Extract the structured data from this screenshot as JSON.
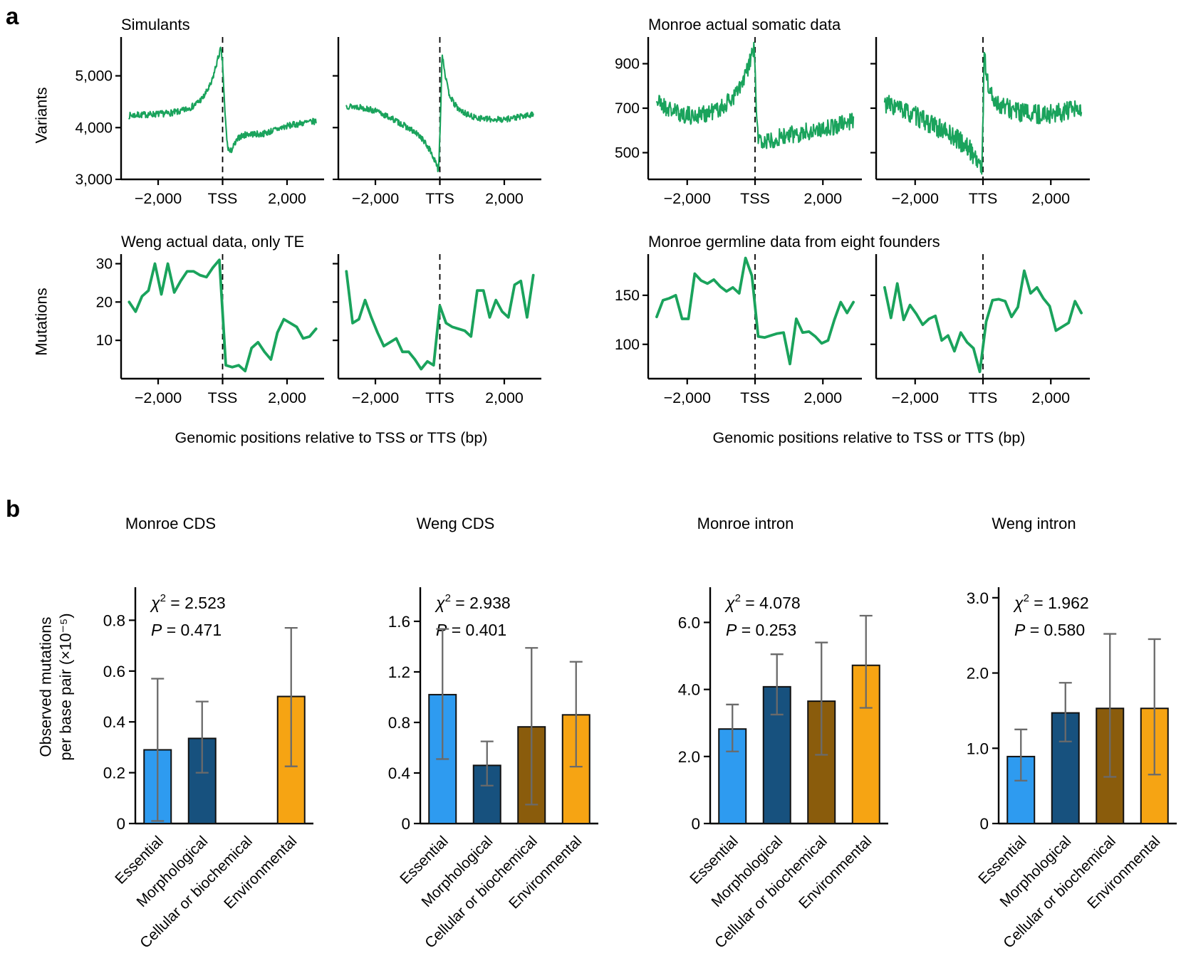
{
  "chart_data": {
    "panel_a": {
      "label": "a",
      "type": "line",
      "ylabel_row1": "Variants",
      "ylabel_row2": "Mutations",
      "xlabel": "Genomic positions relative to TSS or TTS (bp)",
      "line_color": "#1aa35c",
      "axis_color": "#000000",
      "x_lim": [
        -3150,
        3150
      ],
      "x_data_range": [
        -2900,
        2900
      ],
      "x_tick_values": [
        -2000,
        0,
        2000
      ],
      "x_tick_labels": {
        "neg": "−2,000",
        "pos": "2,000"
      },
      "groups": [
        {
          "title": "Simulants",
          "y_ticks": [
            {
              "v": 3000,
              "label": "3,000"
            },
            {
              "v": 4000,
              "label": "4,000"
            },
            {
              "v": 5000,
              "label": "5,000"
            }
          ],
          "y_lim": [
            3000,
            5750
          ],
          "plots": [
            {
              "anchor": "TSS",
              "kind": "noisy",
              "seed": 7,
              "n": 420,
              "noise": 62,
              "trend": [
                [
                  -3000,
                  4230
                ],
                [
                  -2400,
                  4250
                ],
                [
                  -1800,
                  4270
                ],
                [
                  -1300,
                  4310
                ],
                [
                  -900,
                  4420
                ],
                [
                  -600,
                  4580
                ],
                [
                  -350,
                  4850
                ],
                [
                  -180,
                  5250
                ],
                [
                  -60,
                  5520
                ],
                [
                  0,
                  5250
                ],
                [
                  70,
                  4300
                ],
                [
                  150,
                  3640
                ],
                [
                  230,
                  3520
                ],
                [
                  360,
                  3660
                ],
                [
                  520,
                  3820
                ],
                [
                  800,
                  3880
                ],
                [
                  1200,
                  3870
                ],
                [
                  1600,
                  3950
                ],
                [
                  2000,
                  4030
                ],
                [
                  2500,
                  4090
                ],
                [
                  3000,
                  4130
                ]
              ]
            },
            {
              "anchor": "TTS",
              "kind": "noisy",
              "seed": 13,
              "n": 420,
              "noise": 58,
              "trend": [
                [
                  -3000,
                  4420
                ],
                [
                  -2500,
                  4400
                ],
                [
                  -2000,
                  4320
                ],
                [
                  -1500,
                  4180
                ],
                [
                  -1000,
                  4000
                ],
                [
                  -600,
                  3830
                ],
                [
                  -300,
                  3560
                ],
                [
                  -120,
                  3300
                ],
                [
                  -40,
                  3170
                ],
                [
                  20,
                  4200
                ],
                [
                  70,
                  5450
                ],
                [
                  160,
                  5050
                ],
                [
                  260,
                  4700
                ],
                [
                  420,
                  4480
                ],
                [
                  620,
                  4330
                ],
                [
                  1000,
                  4210
                ],
                [
                  1500,
                  4160
                ],
                [
                  2000,
                  4160
                ],
                [
                  2500,
                  4210
                ],
                [
                  3000,
                  4260
                ]
              ]
            }
          ]
        },
        {
          "title": "Monroe actual somatic data",
          "y_ticks": [
            {
              "v": 500,
              "label": "500"
            },
            {
              "v": 700,
              "label": "700"
            },
            {
              "v": 900,
              "label": "900"
            }
          ],
          "y_lim": [
            380,
            1020
          ],
          "plots": [
            {
              "anchor": "TSS",
              "kind": "noisy",
              "seed": 21,
              "n": 400,
              "noise": 40,
              "trend": [
                [
                  -3000,
                  745
                ],
                [
                  -2600,
                  700
                ],
                [
                  -2200,
                  675
                ],
                [
                  -1800,
                  665
                ],
                [
                  -1400,
                  680
                ],
                [
                  -1000,
                  700
                ],
                [
                  -700,
                  740
                ],
                [
                  -400,
                  800
                ],
                [
                  -200,
                  880
                ],
                [
                  -80,
                  950
                ],
                [
                  -20,
                  975
                ],
                [
                  30,
                  700
                ],
                [
                  100,
                  560
                ],
                [
                  250,
                  545
                ],
                [
                  500,
                  560
                ],
                [
                  900,
                  575
                ],
                [
                  1400,
                  590
                ],
                [
                  1900,
                  605
                ],
                [
                  2400,
                  620
                ],
                [
                  3000,
                  650
                ]
              ]
            },
            {
              "anchor": "TTS",
              "kind": "noisy",
              "seed": 33,
              "n": 400,
              "noise": 44,
              "trend": [
                [
                  -3000,
                  730
                ],
                [
                  -2500,
                  700
                ],
                [
                  -2000,
                  665
                ],
                [
                  -1500,
                  625
                ],
                [
                  -1000,
                  585
                ],
                [
                  -700,
                  555
                ],
                [
                  -400,
                  515
                ],
                [
                  -200,
                  475
                ],
                [
                  -80,
                  440
                ],
                [
                  -30,
                  430
                ],
                [
                  10,
                  700
                ],
                [
                  40,
                  990
                ],
                [
                  90,
                  860
                ],
                [
                  180,
                  780
                ],
                [
                  300,
                  740
                ],
                [
                  500,
                  715
                ],
                [
                  900,
                  690
                ],
                [
                  1400,
                  672
                ],
                [
                  2000,
                  675
                ],
                [
                  2500,
                  685
                ],
                [
                  3000,
                  695
                ]
              ]
            }
          ]
        },
        {
          "title": "Weng actual data, only TE",
          "y_ticks": [
            {
              "v": 10,
              "label": "10"
            },
            {
              "v": 20,
              "label": "20"
            },
            {
              "v": 30,
              "label": "30"
            }
          ],
          "y_lim": [
            0,
            32.5
          ],
          "plots": [
            {
              "anchor": "TSS",
              "kind": "series",
              "values": [
                20,
                17.5,
                21.5,
                23,
                30,
                22,
                30,
                22.5,
                25.5,
                28,
                28,
                27,
                26.5,
                29,
                31,
                3.5,
                3,
                3.5,
                2,
                8,
                9.5,
                7,
                5,
                12,
                15.5,
                14.5,
                13.5,
                10.5,
                11,
                13
              ]
            },
            {
              "anchor": "TTS",
              "kind": "series",
              "values": [
                28,
                14.5,
                15.5,
                20.5,
                16,
                12,
                8.5,
                9.5,
                10.5,
                7,
                7,
                5,
                2.5,
                4.5,
                3.5,
                19,
                14.5,
                13.5,
                13,
                12.5,
                11,
                23,
                23,
                16,
                20.5,
                17.5,
                16,
                24.5,
                25.5,
                16,
                27
              ]
            }
          ]
        },
        {
          "title": "Monroe germline data from eight founders",
          "y_ticks": [
            {
              "v": 100,
              "label": "100"
            },
            {
              "v": 150,
              "label": "150"
            }
          ],
          "y_lim": [
            65,
            192
          ],
          "plots": [
            {
              "anchor": "TSS",
              "kind": "series",
              "values": [
                128,
                145,
                147,
                150,
                126,
                126,
                172,
                165,
                162,
                166,
                159,
                154,
                158,
                152,
                188,
                170,
                108,
                107,
                109,
                111,
                112,
                80,
                126,
                112,
                113,
                108,
                101,
                104,
                125,
                143,
                132,
                143
              ]
            },
            {
              "anchor": "TTS",
              "kind": "series",
              "values": [
                158,
                127,
                162,
                125,
                140,
                131,
                120,
                126,
                129,
                104,
                109,
                93,
                112,
                102,
                96,
                72,
                123,
                145,
                146,
                144,
                128,
                138,
                175,
                152,
                158,
                147,
                139,
                114,
                118,
                122,
                144,
                132
              ]
            }
          ]
        }
      ]
    },
    "panel_b": {
      "label": "b",
      "type": "bar",
      "ylabel_line1": "Observed mutations",
      "ylabel_line2": "per base pair (×10⁻⁵)",
      "categories": [
        "Essential",
        "Morphological",
        "Cellular or biochemical",
        "Environmental"
      ],
      "bar_colors": [
        "#2e9bf0",
        "#17517e",
        "#8a5c0c",
        "#f6a413"
      ],
      "bar_edge_color": "#111111",
      "error_color": "#6a6a6a",
      "chi_symbol": "χ",
      "p_symbol": "P",
      "charts": [
        {
          "title": "Monroe CDS",
          "chi_sq": "2.523",
          "p_value": "0.471",
          "y_max": 0.93,
          "y_ticks": [
            0,
            0.2,
            0.4,
            0.6,
            0.8
          ],
          "y_tick_labels": [
            "0",
            "0.2",
            "0.4",
            "0.6",
            "0.8"
          ],
          "values": [
            0.29,
            0.335,
            null,
            0.5
          ],
          "err_low": [
            0.01,
            0.2,
            null,
            0.225
          ],
          "err_high": [
            0.57,
            0.48,
            null,
            0.77
          ]
        },
        {
          "title": "Weng CDS",
          "chi_sq": "2.938",
          "p_value": "0.401",
          "y_max": 1.87,
          "y_ticks": [
            0,
            0.4,
            0.8,
            1.2,
            1.6
          ],
          "y_tick_labels": [
            "0",
            "0.4",
            "0.8",
            "1.2",
            "1.6"
          ],
          "values": [
            1.02,
            0.46,
            0.765,
            0.86
          ],
          "err_low": [
            0.51,
            0.3,
            0.15,
            0.45
          ],
          "err_high": [
            1.54,
            0.65,
            1.39,
            1.28
          ]
        },
        {
          "title": "Monroe intron",
          "chi_sq": "4.078",
          "p_value": "0.253",
          "y_max": 7.05,
          "y_ticks": [
            0,
            2,
            4,
            6
          ],
          "y_tick_labels": [
            "0",
            "2.0",
            "4.0",
            "6.0"
          ],
          "values": [
            2.82,
            4.08,
            3.65,
            4.72
          ],
          "err_low": [
            2.15,
            3.25,
            2.05,
            3.45
          ],
          "err_high": [
            3.55,
            5.05,
            5.4,
            6.2
          ]
        },
        {
          "title": "Weng intron",
          "chi_sq": "1.962",
          "p_value": "0.580",
          "y_max": 3.14,
          "y_ticks": [
            0,
            1,
            2,
            3
          ],
          "y_tick_labels": [
            "0",
            "1.0",
            "2.0",
            "3.0"
          ],
          "values": [
            0.89,
            1.47,
            1.53,
            1.53
          ],
          "err_low": [
            0.57,
            1.09,
            0.62,
            0.65
          ],
          "err_high": [
            1.25,
            1.87,
            2.52,
            2.45
          ]
        }
      ]
    }
  }
}
